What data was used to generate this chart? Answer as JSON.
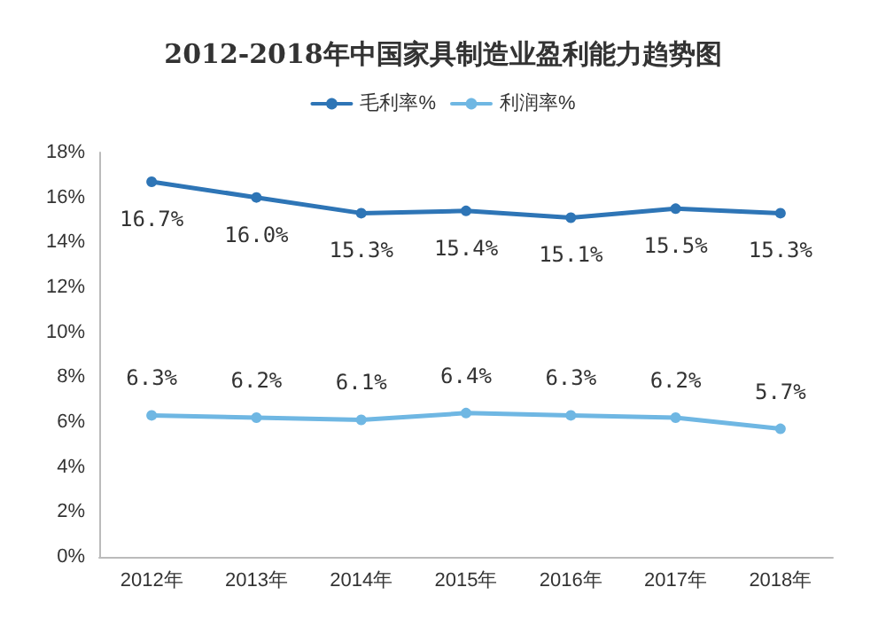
{
  "chart_data": {
    "type": "line",
    "title": "2012-2018年中国家具制造业盈利能力趋势图",
    "categories": [
      "2012年",
      "2013年",
      "2014年",
      "2015年",
      "2016年",
      "2017年",
      "2018年"
    ],
    "series": [
      {
        "name": "毛利率%",
        "color": "#2e75b6",
        "values": [
          16.7,
          16.0,
          15.3,
          15.4,
          15.1,
          15.5,
          15.3
        ],
        "value_labels": [
          "16.7%",
          "16.0%",
          "15.3%",
          "15.4%",
          "15.1%",
          "15.5%",
          "15.3%"
        ]
      },
      {
        "name": "利润率%",
        "color": "#6fb7e3",
        "values": [
          6.3,
          6.2,
          6.1,
          6.4,
          6.3,
          6.2,
          5.7
        ],
        "value_labels": [
          "6.3%",
          "6.2%",
          "6.1%",
          "6.4%",
          "6.3%",
          "6.2%",
          "5.7%"
        ]
      }
    ],
    "ylim": [
      0,
      18
    ],
    "yticks": [
      {
        "value": 0,
        "label": "0%"
      },
      {
        "value": 2,
        "label": "2%"
      },
      {
        "value": 4,
        "label": "4%"
      },
      {
        "value": 6,
        "label": "6%"
      },
      {
        "value": 8,
        "label": "8%"
      },
      {
        "value": 10,
        "label": "10%"
      },
      {
        "value": 12,
        "label": "12%"
      },
      {
        "value": 14,
        "label": "14%"
      },
      {
        "value": 16,
        "label": "16%"
      },
      {
        "value": 18,
        "label": "18%"
      }
    ],
    "legend": "top",
    "marker": "circle",
    "line_style": "solid"
  }
}
